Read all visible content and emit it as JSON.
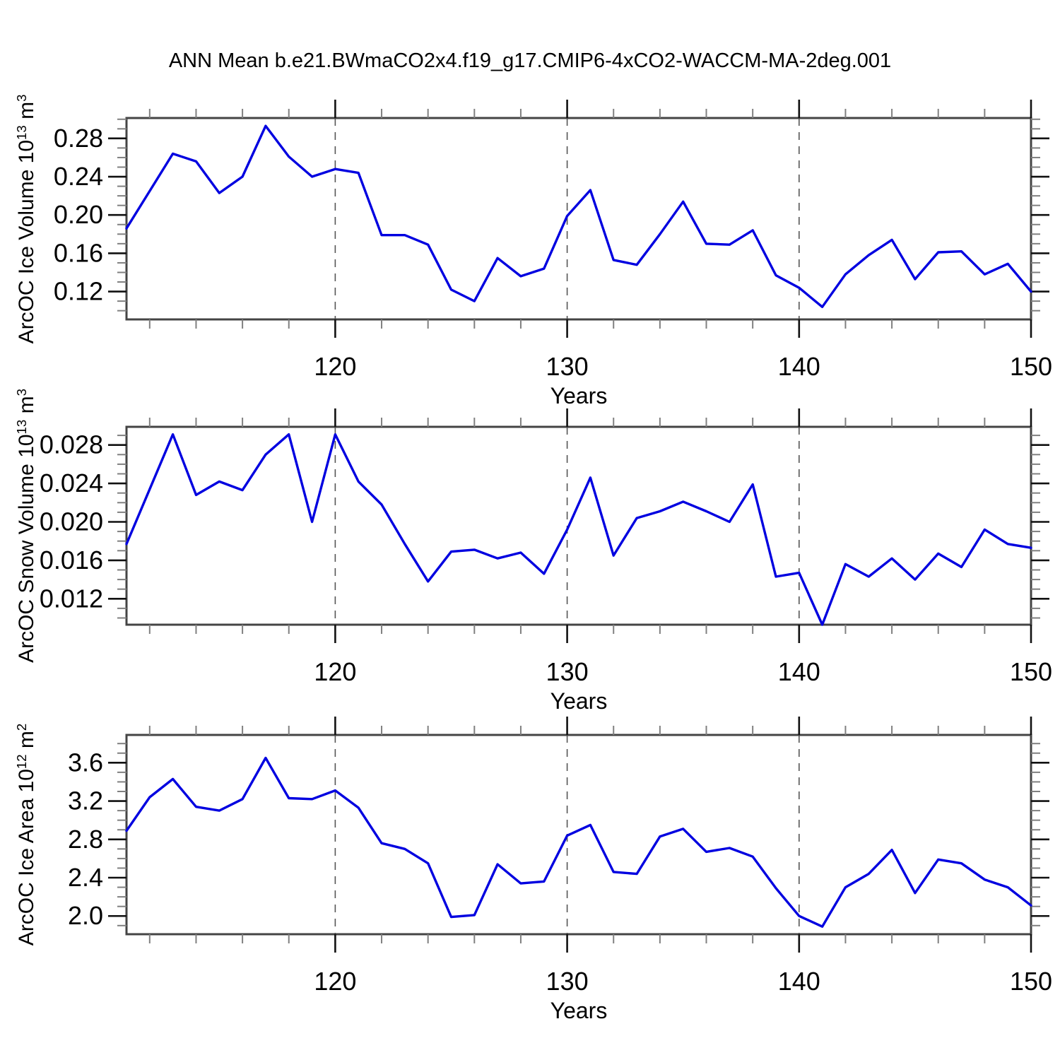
{
  "title": "ANN Mean b.e21.BWmaCO2x4.f19_g17.CMIP6-4xCO2-WACCM-MA-2deg.001",
  "colors": {
    "line": "#0000e0",
    "border": "#444444",
    "major_tick": "#111111",
    "minor_tick": "#808080",
    "grid": "#555555",
    "text": "#000000",
    "background": "#ffffff"
  },
  "x_axis": {
    "label": "Years",
    "range": [
      111,
      150
    ],
    "major_ticks": [
      120,
      130,
      140,
      150
    ],
    "major_tick_labels": [
      "120",
      "130",
      "140",
      "150"
    ],
    "minor_tick_step": 2,
    "grid_years": [
      120,
      130,
      140
    ]
  },
  "chart_data": [
    {
      "type": "line",
      "ylabel_text": "ArcOC Ice Volume 10^13 m^3",
      "ylabel_parts": {
        "prefix": "ArcOC Ice Volume 10",
        "sup1": "13",
        "mid": " m",
        "sup2": "3"
      },
      "ylim": [
        0.0909,
        0.3013
      ],
      "ytick_major": [
        0.12,
        0.16,
        0.2,
        0.24,
        0.28
      ],
      "ytick_labels": [
        "0.12",
        "0.16",
        "0.20",
        "0.24",
        "0.28"
      ],
      "ytick_minor_step": 0.01,
      "x": [
        111,
        112,
        113,
        114,
        115,
        116,
        117,
        118,
        119,
        120,
        121,
        122,
        123,
        124,
        125,
        126,
        127,
        128,
        129,
        130,
        131,
        132,
        133,
        134,
        135,
        136,
        137,
        138,
        139,
        140,
        141,
        142,
        143,
        144,
        145,
        146,
        147,
        148,
        149,
        150
      ],
      "values": [
        0.186,
        0.225,
        0.264,
        0.256,
        0.223,
        0.24,
        0.293,
        0.261,
        0.24,
        0.248,
        0.244,
        0.179,
        0.179,
        0.169,
        0.122,
        0.11,
        0.155,
        0.136,
        0.144,
        0.199,
        0.226,
        0.153,
        0.148,
        0.18,
        0.214,
        0.17,
        0.169,
        0.184,
        0.137,
        0.124,
        0.104,
        0.138,
        0.158,
        0.174,
        0.133,
        0.161,
        0.162,
        0.138,
        0.149,
        0.12
      ]
    },
    {
      "type": "line",
      "ylabel_text": "ArcOC Snow Volume 10^13 m^3",
      "ylabel_parts": {
        "prefix": "ArcOC Snow Volume 10",
        "sup1": "13",
        "mid": " m",
        "sup2": "3"
      },
      "ylim": [
        0.0093,
        0.02989
      ],
      "ytick_major": [
        0.012,
        0.016,
        0.02,
        0.024,
        0.028
      ],
      "ytick_labels": [
        "0.012",
        "0.016",
        "0.020",
        "0.024",
        "0.028"
      ],
      "ytick_minor_step": 0.001,
      "x": [
        111,
        112,
        113,
        114,
        115,
        116,
        117,
        118,
        119,
        120,
        121,
        122,
        123,
        124,
        125,
        126,
        127,
        128,
        129,
        130,
        131,
        132,
        133,
        134,
        135,
        136,
        137,
        138,
        139,
        140,
        141,
        142,
        143,
        144,
        145,
        146,
        147,
        148,
        149,
        150
      ],
      "values": [
        0.0177,
        0.0234,
        0.0291,
        0.0228,
        0.0242,
        0.0233,
        0.027,
        0.0291,
        0.02,
        0.0291,
        0.0242,
        0.0218,
        0.0177,
        0.0138,
        0.0169,
        0.0171,
        0.0162,
        0.0168,
        0.0146,
        0.0192,
        0.0246,
        0.0165,
        0.0204,
        0.0211,
        0.0221,
        0.0211,
        0.02,
        0.0239,
        0.0143,
        0.0147,
        0.0093,
        0.0156,
        0.0143,
        0.0162,
        0.014,
        0.0167,
        0.0153,
        0.0192,
        0.0177,
        0.0173
      ]
    },
    {
      "type": "line",
      "ylabel_text": "ArcOC Ice Area 10^12 m^2",
      "ylabel_parts": {
        "prefix": "ArcOC Ice Area 10",
        "sup1": "12",
        "mid": " m",
        "sup2": "2"
      },
      "ylim": [
        1.81,
        3.89
      ],
      "ytick_major": [
        2.0,
        2.4,
        2.8,
        3.2,
        3.6
      ],
      "ytick_labels": [
        "2.0",
        "2.4",
        "2.8",
        "3.2",
        "3.6"
      ],
      "ytick_minor_step": 0.1,
      "x": [
        111,
        112,
        113,
        114,
        115,
        116,
        117,
        118,
        119,
        120,
        121,
        122,
        123,
        124,
        125,
        126,
        127,
        128,
        129,
        130,
        131,
        132,
        133,
        134,
        135,
        136,
        137,
        138,
        139,
        140,
        141,
        142,
        143,
        144,
        145,
        146,
        147,
        148,
        149,
        150
      ],
      "values": [
        2.89,
        3.24,
        3.43,
        3.14,
        3.1,
        3.22,
        3.65,
        3.23,
        3.22,
        3.31,
        3.13,
        2.76,
        2.7,
        2.55,
        1.99,
        2.01,
        2.54,
        2.34,
        2.36,
        2.84,
        2.95,
        2.46,
        2.44,
        2.83,
        2.91,
        2.67,
        2.71,
        2.62,
        2.29,
        2.0,
        1.89,
        2.3,
        2.44,
        2.69,
        2.24,
        2.59,
        2.55,
        2.38,
        2.3,
        2.11
      ]
    }
  ]
}
